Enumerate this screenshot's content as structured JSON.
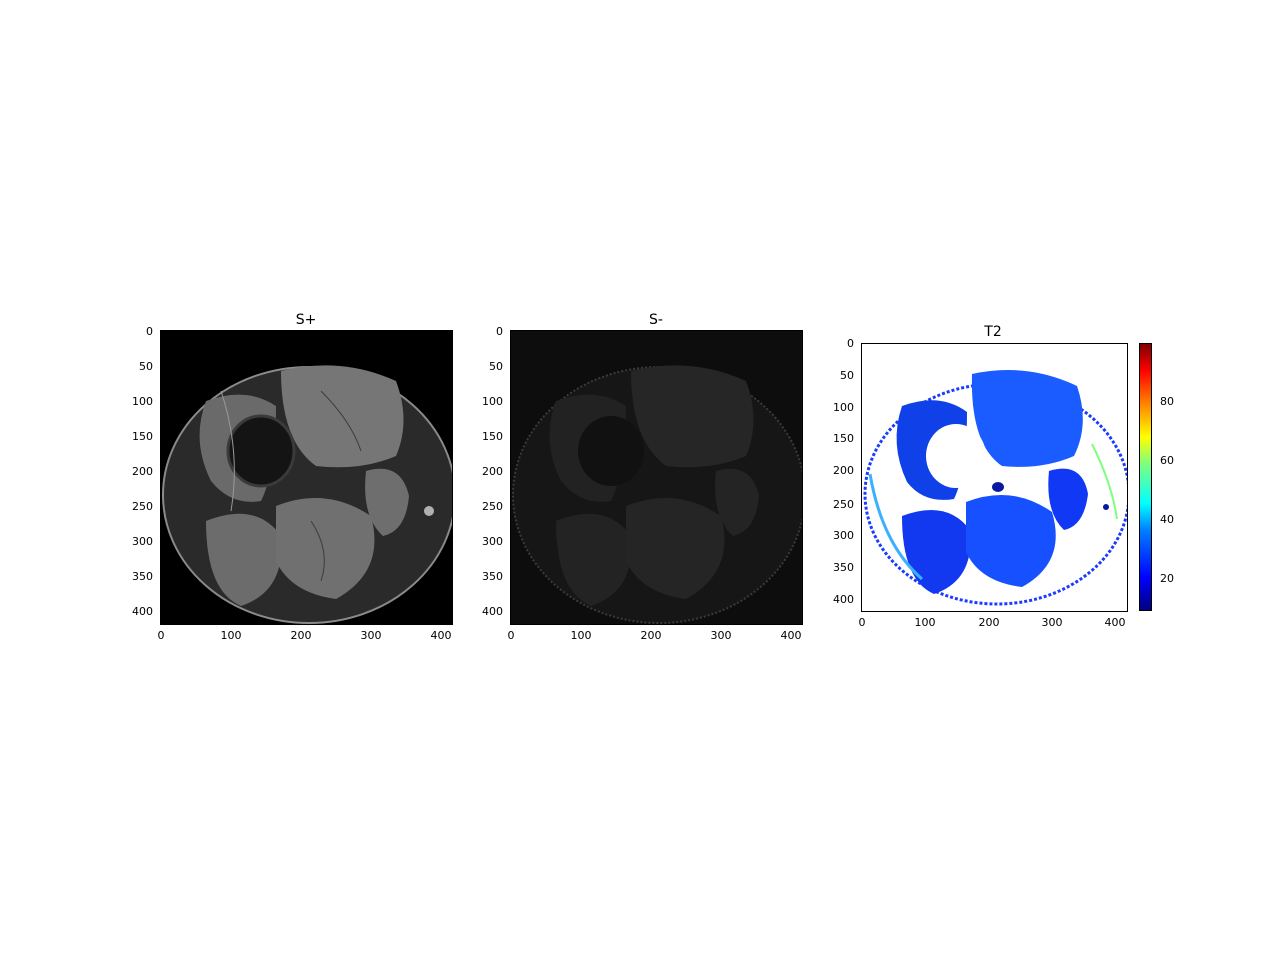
{
  "panels": [
    {
      "title": "S+",
      "x_ticks": [
        "0",
        "100",
        "200",
        "300",
        "400"
      ],
      "y_ticks": [
        "0",
        "50",
        "100",
        "150",
        "200",
        "250",
        "300",
        "350",
        "400"
      ],
      "image": "MRI thigh cross-section, bright signal"
    },
    {
      "title": "S-",
      "x_ticks": [
        "0",
        "100",
        "200",
        "300",
        "400"
      ],
      "y_ticks": [
        "0",
        "50",
        "100",
        "150",
        "200",
        "250",
        "300",
        "350",
        "400"
      ],
      "image": "MRI thigh cross-section, dim signal"
    },
    {
      "title": "T2",
      "x_ticks": [
        "0",
        "100",
        "200",
        "300",
        "400"
      ],
      "y_ticks": [
        "0",
        "50",
        "100",
        "150",
        "200",
        "250",
        "300",
        "350",
        "400"
      ],
      "image": "T2 map jet colormap",
      "colorbar_ticks": [
        "20",
        "40",
        "60",
        "80"
      ]
    }
  ],
  "colormap": {
    "name": "jet",
    "stops": [
      "#00007f",
      "#0000ff",
      "#007fff",
      "#00ffff",
      "#7fff7f",
      "#ffff00",
      "#ff7f00",
      "#ff0000",
      "#7f0000"
    ]
  }
}
